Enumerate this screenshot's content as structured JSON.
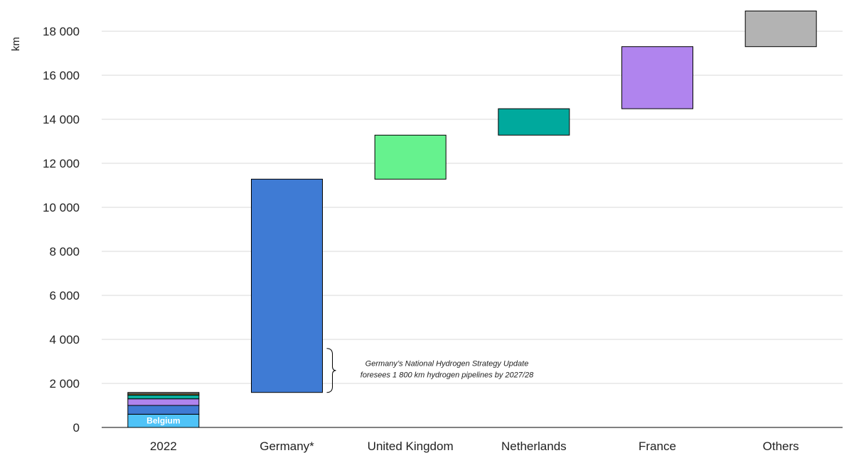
{
  "chart_data": {
    "type": "bar",
    "subtype": "waterfall",
    "ylabel": "km",
    "ylim": [
      0,
      19000
    ],
    "yticks": [
      0,
      2000,
      4000,
      6000,
      8000,
      10000,
      12000,
      14000,
      16000,
      18000
    ],
    "ytick_labels": [
      "0",
      "2 000",
      "4 000",
      "6 000",
      "8 000",
      "10 000",
      "12 000",
      "14 000",
      "16 000",
      "18 000"
    ],
    "grid": true,
    "base": {
      "category": "2022",
      "segments": [
        {
          "value": 600,
          "color": "#4FC3F7",
          "label": "Belgium"
        },
        {
          "value": 400,
          "color": "#3F7BD4",
          "label": ""
        },
        {
          "value": 300,
          "color": "#B084EE",
          "label": ""
        },
        {
          "value": 170,
          "color": "#0BAE9D",
          "label": ""
        },
        {
          "value": 50,
          "color": "#F2C84B",
          "label": ""
        },
        {
          "value": 70,
          "color": "#8B8B8B",
          "label": ""
        }
      ]
    },
    "steps": [
      {
        "category": "Germany*",
        "start": 1590,
        "end": 11280,
        "color": "#3F7BD4"
      },
      {
        "category": "United Kingdom",
        "start": 11280,
        "end": 13280,
        "color": "#66F28E"
      },
      {
        "category": "Netherlands",
        "start": 13280,
        "end": 14480,
        "color": "#00A99D"
      },
      {
        "category": "France",
        "start": 14480,
        "end": 17300,
        "color": "#B084EE"
      },
      {
        "category": "Others",
        "start": 17300,
        "end": 18920,
        "color": "#B3B3B3"
      }
    ],
    "annotation": {
      "lines": [
        "Germany’s National Hydrogen Strategy Update",
        "foresees 1 800 km hydrogen pipelines by 2027/28"
      ],
      "range": [
        1590,
        3590
      ]
    }
  }
}
